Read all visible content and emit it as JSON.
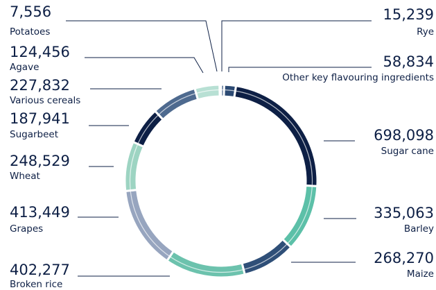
{
  "chart_data": {
    "type": "donut",
    "categories": [
      "Rye",
      "Other key flavouring ingredients",
      "Sugar cane",
      "Barley",
      "Maize",
      "Broken rice",
      "Grapes",
      "Wheat",
      "Sugarbeet",
      "Various cereals",
      "Agave",
      "Potatoes"
    ],
    "values": [
      15239,
      58834,
      698098,
      335063,
      268270,
      402277,
      413449,
      248529,
      187941,
      227832,
      124456,
      7556
    ],
    "value_labels": [
      "15,239",
      "58,834",
      "698,098",
      "335,063",
      "268,270",
      "402,277",
      "413,449",
      "248,529",
      "187,941",
      "227,832",
      "124,456",
      "7,556"
    ],
    "colors": [
      "#2f4f7a",
      "#2c4a73",
      "#0d1f45",
      "#5cc0a8",
      "#2f4f78",
      "#6cc2ad",
      "#97a5bf",
      "#9dd4c2",
      "#0d1f45",
      "#4e6a8f",
      "#b8e0d4",
      "#b8c5d4"
    ]
  }
}
